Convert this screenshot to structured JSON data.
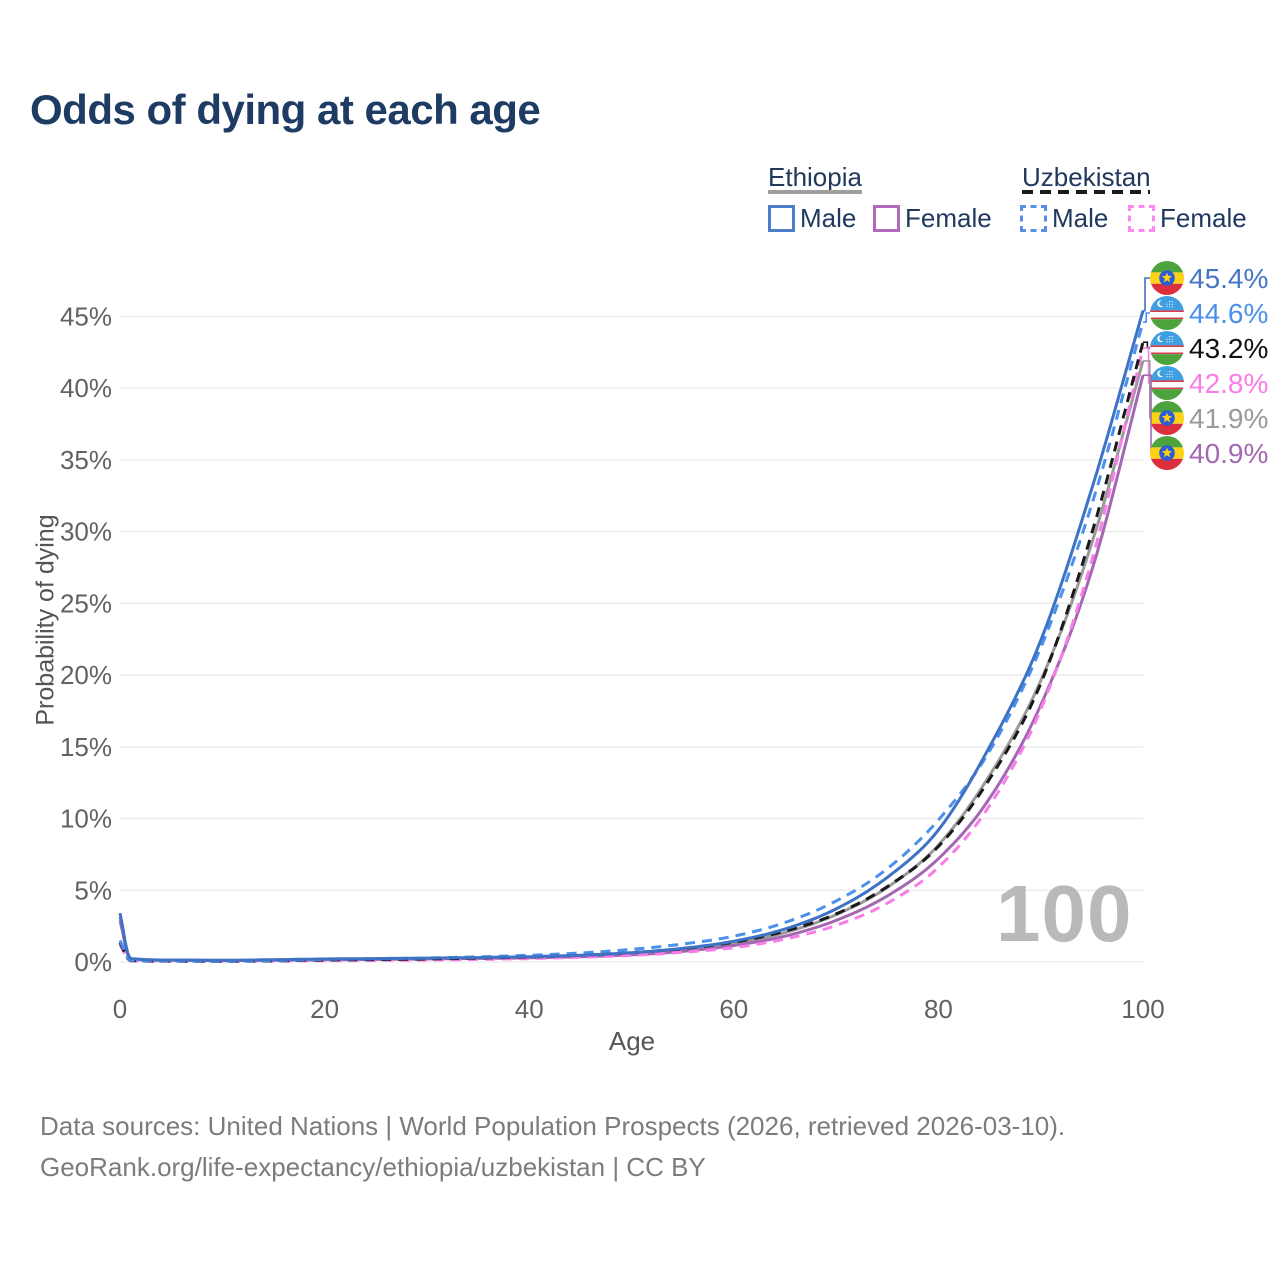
{
  "page": {
    "title": "Odds of dying at each age"
  },
  "legend": {
    "groups": [
      {
        "label": "Ethiopia",
        "line": "solid",
        "underline_color": "#9e9e9e",
        "items": [
          {
            "label": "Male",
            "color": "#4f7ec9"
          },
          {
            "label": "Female",
            "color": "#b269bb"
          }
        ]
      },
      {
        "label": "Uzbekistan",
        "line": "dashed",
        "underline_color": "#1a1a1a",
        "items": [
          {
            "label": "Male",
            "color": "#5a8fe8"
          },
          {
            "label": "Female",
            "color": "#fc8af0"
          }
        ]
      }
    ]
  },
  "chart_data": {
    "type": "line",
    "title": "Odds of dying at each age",
    "xlabel": "Age",
    "ylabel": "Probability of dying",
    "xlim": [
      0,
      100
    ],
    "ylim": [
      0,
      47
    ],
    "x_ticks": [
      0,
      20,
      40,
      60,
      80,
      100
    ],
    "y_ticks": [
      0,
      5,
      10,
      15,
      20,
      25,
      30,
      35,
      40,
      45
    ],
    "y_tick_suffix": "%",
    "grid": "horizontal",
    "legend_position": "top-right",
    "ages": [
      0,
      1,
      5,
      10,
      15,
      20,
      25,
      30,
      35,
      40,
      45,
      50,
      55,
      60,
      65,
      70,
      75,
      80,
      85,
      90,
      95,
      100
    ],
    "series": [
      {
        "id": "ethiopia-male",
        "name": "Ethiopia Male",
        "country": "ethiopia",
        "sex": "male",
        "line": "solid",
        "color": "#3e72c4",
        "label_color": "#4576c6",
        "end_label": "45.4%",
        "values": [
          3.4,
          0.25,
          0.14,
          0.12,
          0.16,
          0.21,
          0.24,
          0.27,
          0.31,
          0.37,
          0.47,
          0.65,
          0.95,
          1.45,
          2.3,
          3.7,
          5.9,
          9.2,
          15.0,
          22.4,
          33.0,
          45.4
        ]
      },
      {
        "id": "uzbekistan-male",
        "name": "Uzbekistan Male",
        "country": "uzbekistan",
        "sex": "male",
        "line": "dashed",
        "color": "#4a90ec",
        "label_color": "#4a90ea",
        "end_label": "44.6%",
        "values": [
          1.5,
          0.12,
          0.07,
          0.06,
          0.1,
          0.18,
          0.22,
          0.28,
          0.36,
          0.47,
          0.63,
          0.88,
          1.25,
          1.8,
          2.75,
          4.25,
          6.5,
          9.9,
          14.7,
          21.9,
          31.9,
          44.6
        ]
      },
      {
        "id": "uzbekistan-both",
        "name": "Uzbekistan (both sexes)",
        "country": "uzbekistan",
        "sex": "both",
        "line": "dashed",
        "color": "#1a1a1a",
        "label_color": "#111111",
        "end_label": "43.2%",
        "values": [
          1.35,
          0.1,
          0.06,
          0.05,
          0.08,
          0.14,
          0.17,
          0.21,
          0.27,
          0.35,
          0.47,
          0.65,
          0.93,
          1.38,
          2.15,
          3.35,
          5.25,
          8.05,
          12.75,
          19.4,
          29.9,
          43.2
        ]
      },
      {
        "id": "uzbekistan-female",
        "name": "Uzbekistan Female",
        "country": "uzbekistan",
        "sex": "female",
        "line": "dashed",
        "color": "#f97ce8",
        "label_color": "#f97ce8",
        "end_label": "42.8%",
        "values": [
          1.2,
          0.09,
          0.05,
          0.04,
          0.06,
          0.09,
          0.11,
          0.14,
          0.18,
          0.24,
          0.33,
          0.46,
          0.68,
          1.0,
          1.6,
          2.55,
          4.1,
          6.6,
          10.9,
          17.6,
          28.0,
          42.8
        ]
      },
      {
        "id": "ethiopia-both",
        "name": "Ethiopia (both sexes)",
        "country": "ethiopia",
        "sex": "both",
        "line": "solid",
        "color": "#9a9a9a",
        "label_color": "#9a9a9a",
        "end_label": "41.9%",
        "values": [
          3.15,
          0.23,
          0.13,
          0.11,
          0.14,
          0.18,
          0.21,
          0.24,
          0.28,
          0.33,
          0.42,
          0.57,
          0.84,
          1.3,
          2.05,
          3.3,
          5.2,
          8.15,
          13.0,
          19.6,
          29.2,
          41.9
        ]
      },
      {
        "id": "ethiopia-female",
        "name": "Ethiopia Female",
        "country": "ethiopia",
        "sex": "female",
        "line": "solid",
        "color": "#a468b2",
        "label_color": "#a468b2",
        "end_label": "40.9%",
        "values": [
          2.9,
          0.21,
          0.12,
          0.1,
          0.12,
          0.15,
          0.18,
          0.21,
          0.25,
          0.29,
          0.37,
          0.5,
          0.74,
          1.15,
          1.8,
          2.9,
          4.6,
          7.2,
          11.4,
          17.9,
          27.3,
          40.9
        ]
      }
    ]
  },
  "watermark": {
    "text": "100",
    "color": "#b9b9b9"
  },
  "footer": {
    "line1": "Data sources: United Nations | World Population Prospects (2026, retrieved 2026-03-10).",
    "line2": "GeoRank.org/life-expectancy/ethiopia/uzbekistan | CC BY"
  }
}
